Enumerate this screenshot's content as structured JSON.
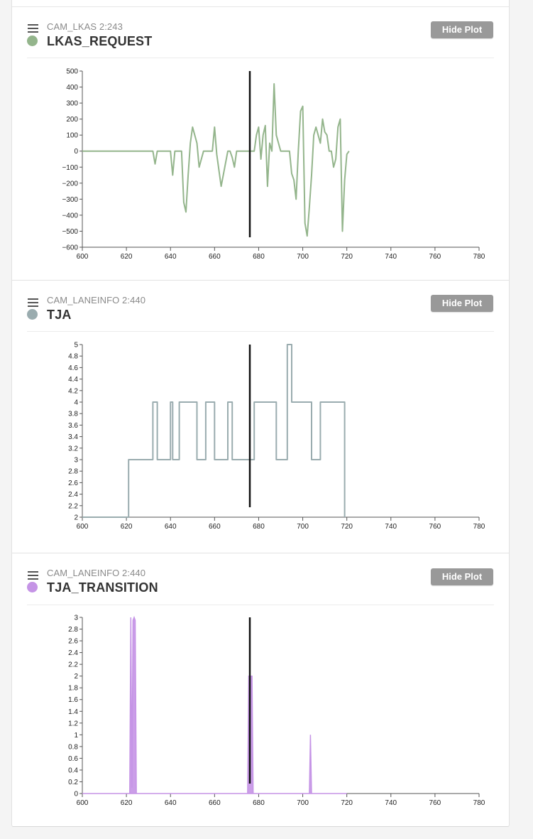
{
  "panels": [
    {
      "source": "CAM_LKAS 2:243",
      "signal": "LKAS_REQUEST",
      "color": "#94b58c",
      "button": "Hide Plot"
    },
    {
      "source": "CAM_LANEINFO 2:440",
      "signal": "TJA",
      "color": "#9aacaf",
      "button": "Hide Plot"
    },
    {
      "source": "CAM_LANEINFO 2:440",
      "signal": "TJA_TRANSITION",
      "color": "#c594e6",
      "button": "Hide Plot"
    }
  ],
  "chart_data": [
    {
      "type": "line",
      "title": "LKAS_REQUEST",
      "cursor_x": 676,
      "xlim": [
        600,
        780
      ],
      "xticks": [
        "600",
        "620",
        "640",
        "660",
        "680",
        "700",
        "720",
        "740",
        "760",
        "780"
      ],
      "ylim": [
        -600,
        500
      ],
      "yticks": [
        "500",
        "400",
        "300",
        "200",
        "100",
        "0",
        "−100",
        "−200",
        "−300",
        "−400",
        "−500",
        "−600"
      ],
      "x": [
        600,
        632,
        633,
        634,
        636,
        640,
        641,
        642,
        643,
        645,
        646,
        647,
        648,
        649,
        650,
        651,
        652,
        653,
        654,
        655,
        656,
        657,
        658,
        659,
        660,
        661,
        663,
        666,
        667,
        668,
        669,
        670,
        672,
        676,
        678,
        679,
        680,
        681,
        682,
        683,
        684,
        685,
        686,
        687,
        688,
        689,
        690,
        691,
        692,
        693,
        694,
        695,
        696,
        697,
        698,
        699,
        700,
        701,
        702,
        703,
        704,
        705,
        706,
        707,
        708,
        709,
        710,
        711,
        712,
        713,
        714,
        715,
        716,
        717,
        718,
        719,
        720,
        721
      ],
      "y": [
        0,
        0,
        -80,
        0,
        0,
        0,
        -150,
        0,
        0,
        0,
        -320,
        -380,
        -150,
        50,
        150,
        100,
        50,
        -100,
        -50,
        0,
        0,
        0,
        0,
        0,
        150,
        -20,
        -220,
        0,
        0,
        -40,
        -100,
        0,
        0,
        0,
        0,
        100,
        150,
        -50,
        100,
        160,
        -220,
        50,
        0,
        420,
        100,
        50,
        0,
        0,
        0,
        0,
        0,
        -140,
        -180,
        -300,
        0,
        250,
        280,
        -450,
        -530,
        -350,
        -150,
        100,
        150,
        100,
        50,
        200,
        120,
        100,
        0,
        0,
        -100,
        -50,
        150,
        200,
        -500,
        -180,
        -20,
        0
      ]
    },
    {
      "type": "line",
      "title": "TJA",
      "cursor_x": 676,
      "xlim": [
        600,
        780
      ],
      "xticks": [
        "600",
        "620",
        "640",
        "660",
        "680",
        "700",
        "720",
        "740",
        "760",
        "780"
      ],
      "ylim": [
        2,
        5
      ],
      "yticks": [
        "5",
        "4.8",
        "4.6",
        "4.4",
        "4.2",
        "4",
        "3.8",
        "3.6",
        "3.4",
        "3.2",
        "3",
        "2.8",
        "2.6",
        "2.4",
        "2.2",
        "2"
      ],
      "x": [
        600,
        621,
        621,
        632,
        632,
        634,
        634,
        640,
        640,
        641,
        641,
        644,
        644,
        652,
        652,
        656,
        656,
        660,
        660,
        666,
        666,
        668,
        668,
        678,
        678,
        688,
        688,
        693,
        693,
        695,
        695,
        704,
        704,
        708,
        708,
        719,
        719
      ],
      "y": [
        2,
        2,
        3,
        3,
        4,
        4,
        3,
        3,
        4,
        4,
        3,
        3,
        4,
        4,
        3,
        3,
        4,
        4,
        3,
        3,
        4,
        4,
        3,
        3,
        4,
        4,
        3,
        3,
        5,
        5,
        4,
        4,
        3,
        3,
        4,
        4,
        2
      ]
    },
    {
      "type": "area",
      "title": "TJA_TRANSITION",
      "cursor_x": 676,
      "xlim": [
        600,
        780
      ],
      "xticks": [
        "600",
        "620",
        "640",
        "660",
        "680",
        "700",
        "720",
        "740",
        "760",
        "780"
      ],
      "ylim": [
        0,
        3
      ],
      "yticks": [
        "3",
        "2.8",
        "2.6",
        "2.4",
        "2.2",
        "2",
        "1.8",
        "1.6",
        "1.4",
        "1.2",
        "1",
        "0.8",
        "0.6",
        "0.4",
        "0.2",
        "0"
      ],
      "x": [
        600,
        621.5,
        622,
        622.5,
        623,
        623.5,
        624,
        624.5,
        675,
        675.5,
        677,
        677.5,
        703,
        703.5,
        704,
        720
      ],
      "y": [
        0,
        0,
        3,
        0.1,
        2.95,
        3,
        2.95,
        0,
        0,
        2,
        2,
        0,
        0,
        1,
        0,
        0
      ]
    }
  ]
}
